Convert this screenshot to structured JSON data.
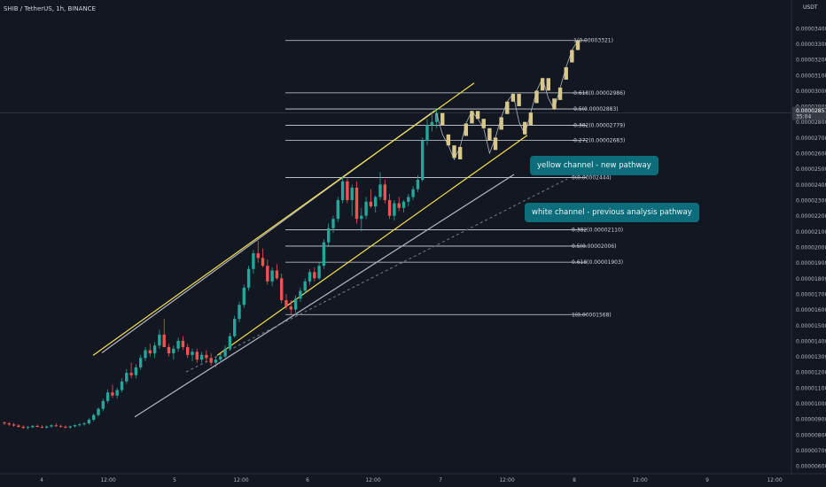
{
  "header": {
    "title": "SHIB / TetherUS, 1h, BINANCE"
  },
  "price_axis": {
    "currency": "USDT",
    "ticks": [
      "0.00003400",
      "0.00003300",
      "0.00003200",
      "0.00003100",
      "0.00003000",
      "0.00002900",
      "0.00002800",
      "0.00002700",
      "0.00002600",
      "0.00002500",
      "0.00002400",
      "0.00002300",
      "0.00002200",
      "0.00002100",
      "0.00002000",
      "0.00001900",
      "0.00001800",
      "0.00001700",
      "0.00001600",
      "0.00001500",
      "0.00001400",
      "0.00001300",
      "0.00001200",
      "0.00001100",
      "0.00001000",
      "0.00000900",
      "0.00000800",
      "0.00000700",
      "0.00000600"
    ],
    "current_price": "0.00002857",
    "countdown": "35:04"
  },
  "time_axis": {
    "ticks": [
      "4",
      "12:00",
      "5",
      "12:00",
      "6",
      "12:00",
      "7",
      "12:00",
      "8",
      "12:00",
      "9",
      "12:00"
    ]
  },
  "callouts": {
    "yellow": "yellow channel - new pathway",
    "white": "white channel - previous analysis pathway"
  },
  "colors": {
    "background": "#131722",
    "up": "#26a69a",
    "down": "#ef5350",
    "projection": "#d8c98a",
    "yellow_channel": "#f5e04a",
    "white_channel": "#b2b5be",
    "callout_bg": "#0e6d7a"
  },
  "chart_data": {
    "type": "candlestick",
    "title": "SHIB / TetherUS, 1h, BINANCE",
    "y_unit": "USDT",
    "ylim": [
      5.5e-06,
      3.58e-05
    ],
    "x_ticks": [
      "4",
      "12:00",
      "5",
      "12:00",
      "6",
      "12:00",
      "7",
      "12:00",
      "8",
      "12:00",
      "9",
      "12:00"
    ],
    "fib_levels": [
      {
        "ratio": "-1",
        "price": "0.00003321"
      },
      {
        "ratio": "-0.618",
        "price": "0.00002986"
      },
      {
        "ratio": "-0.5",
        "price": "0.00002883"
      },
      {
        "ratio": "-0.382",
        "price": "0.00002779"
      },
      {
        "ratio": "-0.272",
        "price": "0.00002683"
      },
      {
        "ratio": "0",
        "price": "0.00002444"
      },
      {
        "ratio": "0.382",
        "price": "0.00002110"
      },
      {
        "ratio": "0.5",
        "price": "0.00002006"
      },
      {
        "ratio": "0.618",
        "price": "0.00001903"
      },
      {
        "ratio": "1",
        "price": "0.00001568"
      }
    ],
    "candles_ohlc_e5": [
      [
        0.878,
        0.885,
        0.86,
        0.872
      ],
      [
        0.872,
        0.88,
        0.855,
        0.865
      ],
      [
        0.865,
        0.875,
        0.85,
        0.858
      ],
      [
        0.858,
        0.868,
        0.845,
        0.85
      ],
      [
        0.85,
        0.86,
        0.838,
        0.843
      ],
      [
        0.843,
        0.855,
        0.835,
        0.848
      ],
      [
        0.848,
        0.862,
        0.842,
        0.856
      ],
      [
        0.856,
        0.865,
        0.846,
        0.85
      ],
      [
        0.85,
        0.86,
        0.84,
        0.845
      ],
      [
        0.845,
        0.858,
        0.838,
        0.852
      ],
      [
        0.852,
        0.866,
        0.845,
        0.86
      ],
      [
        0.86,
        0.872,
        0.85,
        0.855
      ],
      [
        0.855,
        0.865,
        0.845,
        0.85
      ],
      [
        0.85,
        0.86,
        0.84,
        0.846
      ],
      [
        0.846,
        0.858,
        0.838,
        0.853
      ],
      [
        0.853,
        0.866,
        0.846,
        0.861
      ],
      [
        0.861,
        0.874,
        0.852,
        0.866
      ],
      [
        0.866,
        0.88,
        0.858,
        0.872
      ],
      [
        0.872,
        0.905,
        0.865,
        0.895
      ],
      [
        0.895,
        0.935,
        0.885,
        0.925
      ],
      [
        0.925,
        0.975,
        0.915,
        0.965
      ],
      [
        0.965,
        1.03,
        0.95,
        1.015
      ],
      [
        1.015,
        1.09,
        1.0,
        1.07
      ],
      [
        1.07,
        1.12,
        1.035,
        1.05
      ],
      [
        1.05,
        1.1,
        1.03,
        1.085
      ],
      [
        1.085,
        1.16,
        1.07,
        1.14
      ],
      [
        1.14,
        1.22,
        1.125,
        1.195
      ],
      [
        1.195,
        1.26,
        1.16,
        1.18
      ],
      [
        1.18,
        1.25,
        1.16,
        1.23
      ],
      [
        1.23,
        1.31,
        1.215,
        1.29
      ],
      [
        1.29,
        1.36,
        1.27,
        1.34
      ],
      [
        1.34,
        1.38,
        1.3,
        1.32
      ],
      [
        1.32,
        1.39,
        1.29,
        1.37
      ],
      [
        1.37,
        1.47,
        1.35,
        1.44
      ],
      [
        1.44,
        1.54,
        1.41,
        1.36
      ],
      [
        1.36,
        1.38,
        1.3,
        1.32
      ],
      [
        1.32,
        1.37,
        1.28,
        1.35
      ],
      [
        1.35,
        1.42,
        1.33,
        1.4
      ],
      [
        1.4,
        1.43,
        1.34,
        1.36
      ],
      [
        1.36,
        1.38,
        1.29,
        1.31
      ],
      [
        1.31,
        1.35,
        1.27,
        1.33
      ],
      [
        1.33,
        1.35,
        1.26,
        1.28
      ],
      [
        1.28,
        1.33,
        1.26,
        1.31
      ],
      [
        1.31,
        1.34,
        1.26,
        1.29
      ],
      [
        1.29,
        1.32,
        1.24,
        1.26
      ],
      [
        1.26,
        1.3,
        1.23,
        1.28
      ],
      [
        1.28,
        1.31,
        1.26,
        1.3
      ],
      [
        1.3,
        1.37,
        1.29,
        1.35
      ],
      [
        1.35,
        1.45,
        1.34,
        1.43
      ],
      [
        1.43,
        1.56,
        1.42,
        1.54
      ],
      [
        1.54,
        1.65,
        1.52,
        1.63
      ],
      [
        1.63,
        1.76,
        1.61,
        1.74
      ],
      [
        1.74,
        1.88,
        1.72,
        1.86
      ],
      [
        1.86,
        1.98,
        1.83,
        1.96
      ],
      [
        1.96,
        2.04,
        1.9,
        1.93
      ],
      [
        1.93,
        1.99,
        1.87,
        1.88
      ],
      [
        1.88,
        1.92,
        1.76,
        1.78
      ],
      [
        1.78,
        1.87,
        1.75,
        1.85
      ],
      [
        1.85,
        1.89,
        1.79,
        1.8
      ],
      [
        1.8,
        1.83,
        1.64,
        1.66
      ],
      [
        1.66,
        1.7,
        1.6,
        1.62
      ],
      [
        1.62,
        1.66,
        1.57,
        1.6
      ],
      [
        1.6,
        1.69,
        1.58,
        1.67
      ],
      [
        1.67,
        1.74,
        1.65,
        1.72
      ],
      [
        1.72,
        1.8,
        1.7,
        1.78
      ],
      [
        1.78,
        1.86,
        1.76,
        1.84
      ],
      [
        1.84,
        1.87,
        1.78,
        1.8
      ],
      [
        1.8,
        1.9,
        1.79,
        1.88
      ],
      [
        1.88,
        2.05,
        1.86,
        2.03
      ],
      [
        2.03,
        2.15,
        2.0,
        2.12
      ],
      [
        2.12,
        2.2,
        2.09,
        2.18
      ],
      [
        2.18,
        2.32,
        2.16,
        2.3
      ],
      [
        2.3,
        2.45,
        2.28,
        2.42
      ],
      [
        2.42,
        2.44,
        2.28,
        2.3
      ],
      [
        2.3,
        2.4,
        2.2,
        2.38
      ],
      [
        2.38,
        2.42,
        2.15,
        2.18
      ],
      [
        2.18,
        2.25,
        2.1,
        2.2
      ],
      [
        2.2,
        2.32,
        2.18,
        2.29
      ],
      [
        2.29,
        2.37,
        2.25,
        2.26
      ],
      [
        2.26,
        2.33,
        2.22,
        2.32
      ],
      [
        2.32,
        2.48,
        2.3,
        2.4
      ],
      [
        2.4,
        2.43,
        2.28,
        2.3
      ],
      [
        2.3,
        2.34,
        2.18,
        2.2
      ],
      [
        2.2,
        2.3,
        2.17,
        2.28
      ],
      [
        2.28,
        2.32,
        2.23,
        2.25
      ],
      [
        2.25,
        2.3,
        2.22,
        2.29
      ],
      [
        2.29,
        2.34,
        2.26,
        2.32
      ],
      [
        2.32,
        2.39,
        2.3,
        2.37
      ],
      [
        2.37,
        2.46,
        2.35,
        2.43
      ],
      [
        2.43,
        2.7,
        2.42,
        2.68
      ],
      [
        2.68,
        2.82,
        2.65,
        2.78
      ],
      [
        2.78,
        2.86,
        2.74,
        2.8
      ],
      [
        2.8,
        2.88,
        2.76,
        2.857
      ]
    ],
    "projection_path_e5": [
      2.857,
      2.72,
      2.65,
      2.56,
      2.64,
      2.79,
      2.87,
      2.82,
      2.76,
      2.6,
      2.7,
      2.83,
      2.93,
      2.98,
      2.8,
      2.72,
      2.86,
      3.0,
      3.08,
      2.95,
      2.88,
      3.02,
      3.15,
      3.26,
      3.321
    ],
    "yellow_channel": {
      "upper": [
        [
          105,
          1.307
        ],
        [
          535,
          3.049
        ]
      ],
      "lower": [
        [
          245,
          1.307
        ],
        [
          595,
          2.715
        ]
      ]
    },
    "white_channel": {
      "upper": [
        [
          115,
          1.323
        ],
        [
          490,
          2.871
        ]
      ],
      "mid": [
        [
          210,
          1.201
        ],
        [
          640,
          2.435
        ]
      ],
      "lower": [
        [
          152,
          0.913
        ],
        [
          580,
          2.464
        ]
      ]
    }
  }
}
